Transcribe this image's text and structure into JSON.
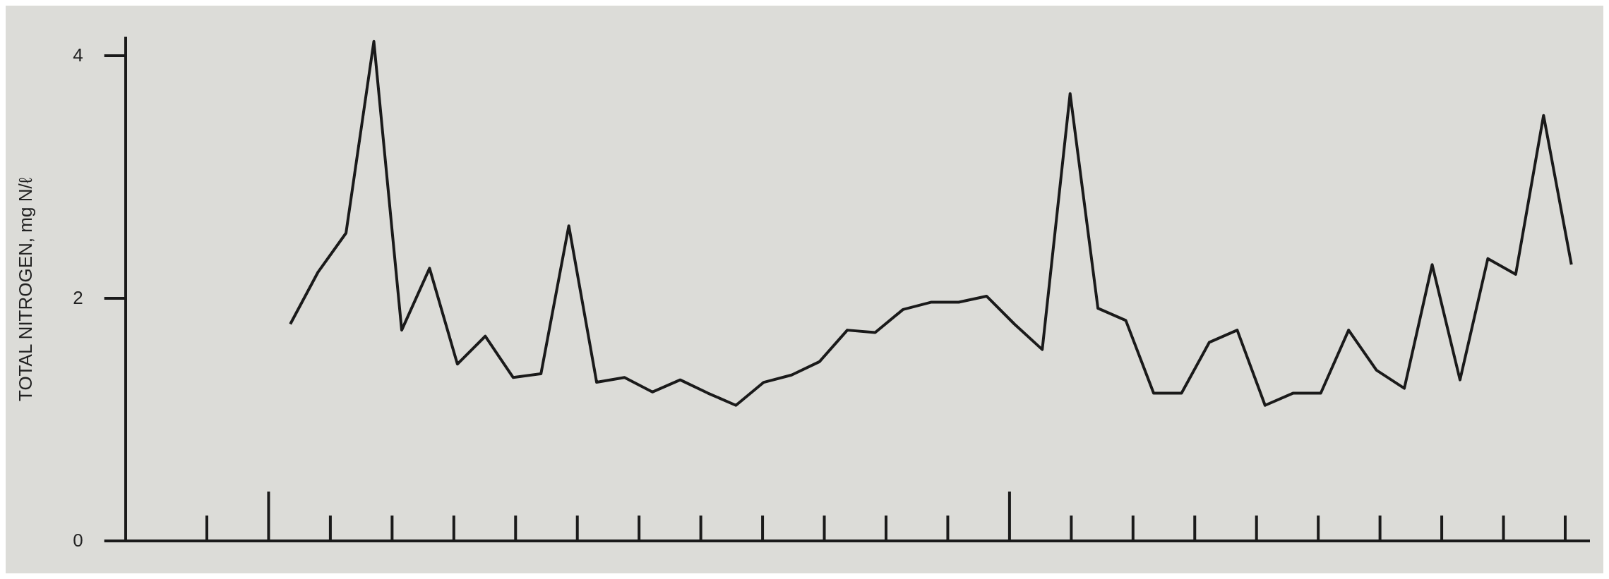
{
  "chart_data": {
    "type": "line",
    "ylabel": "TOTAL NITROGEN, mg N/ℓ",
    "grid": false,
    "legend": false,
    "marker": "none",
    "line_style": "solid",
    "categories": [
      null,
      null,
      null,
      null,
      null,
      null,
      null,
      null,
      null,
      null,
      null,
      null,
      null,
      null,
      null,
      null,
      null,
      null,
      null,
      null,
      null,
      null,
      null,
      null,
      null,
      null,
      null,
      null,
      null,
      null,
      null,
      null,
      null,
      null,
      null,
      null,
      null,
      null,
      null,
      null,
      null,
      null,
      null,
      null,
      null,
      null,
      null
    ],
    "ylim": [
      0,
      4.15
    ],
    "yticks": [
      0,
      2,
      4
    ],
    "series": [
      {
        "color": "#1a1a1a",
        "values": [
          1.79,
          2.22,
          2.54,
          4.12,
          1.74,
          2.25,
          1.46,
          1.69,
          1.35,
          1.38,
          2.6,
          1.31,
          1.35,
          1.23,
          1.33,
          1.22,
          1.12,
          1.31,
          1.37,
          1.48,
          1.74,
          1.72,
          1.91,
          1.97,
          1.97,
          2.02,
          1.79,
          1.58,
          3.69,
          1.92,
          1.82,
          1.22,
          1.22,
          1.64,
          1.74,
          1.12,
          1.22,
          1.22,
          1.74,
          1.41,
          1.26,
          2.28,
          1.33,
          2.33,
          2.2,
          3.51,
          2.28
        ]
      }
    ]
  }
}
